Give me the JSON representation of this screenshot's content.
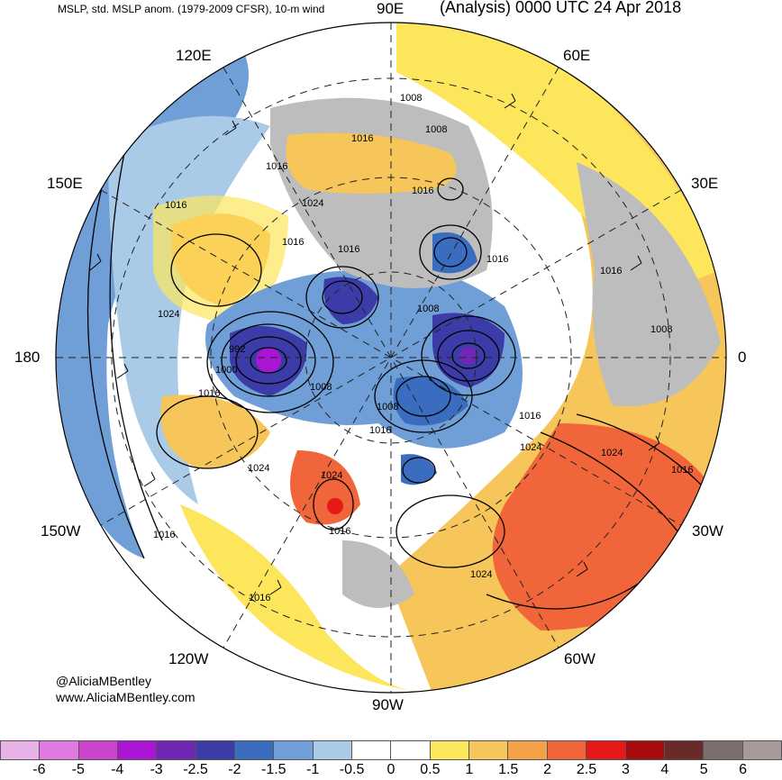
{
  "header": {
    "left_title": "MSLP, std. MSLP anom. (1979-2009 CFSR), 10-m wind",
    "right_title": "(Analysis) 0000 UTC 24 Apr 2018"
  },
  "longitude_labels": {
    "lon_90e": "90E",
    "lon_120e": "120E",
    "lon_60e": "60E",
    "lon_150e": "150E",
    "lon_30e": "30E",
    "lon_180": "180",
    "lon_0": "0",
    "lon_150w": "150W",
    "lon_30w": "30W",
    "lon_120w": "120W",
    "lon_60w": "60W",
    "lon_90w": "90W"
  },
  "isobar_labels": [
    "1008",
    "1008",
    "1016",
    "1016",
    "1024",
    "1016",
    "1016",
    "1016",
    "1016",
    "1016",
    "1024",
    "1008",
    "1016",
    "1008",
    "992",
    "1000",
    "1016",
    "1008",
    "1008",
    "1016",
    "1016",
    "1024",
    "1024",
    "1024",
    "1024",
    "1016",
    "1016",
    "1016",
    "1024",
    "1016"
  ],
  "credits": {
    "handle": "@AliciaMBentley",
    "website": "www.AliciaMBentley.com"
  },
  "colorbar": {
    "colors": [
      "#e8b2e8",
      "#e07ae0",
      "#cc44cc",
      "#aa16d4",
      "#7028b4",
      "#3c3ca8",
      "#3a6cc0",
      "#6f9fd6",
      "#a9cbe8",
      "#ffffff",
      "#ffffff",
      "#fde65c",
      "#f6c65a",
      "#f4a24a",
      "#f0663a",
      "#e61818",
      "#a80c0c",
      "#6a2a2a",
      "#7a6e6e",
      "#a89a9a"
    ],
    "labels": [
      "-6",
      "-5",
      "-4",
      "-3",
      "-2.5",
      "-2",
      "-1.5",
      "-1",
      "-0.5",
      "0",
      "0.5",
      "1",
      "1.5",
      "2",
      "2.5",
      "3",
      "4",
      "5",
      "6"
    ]
  }
}
